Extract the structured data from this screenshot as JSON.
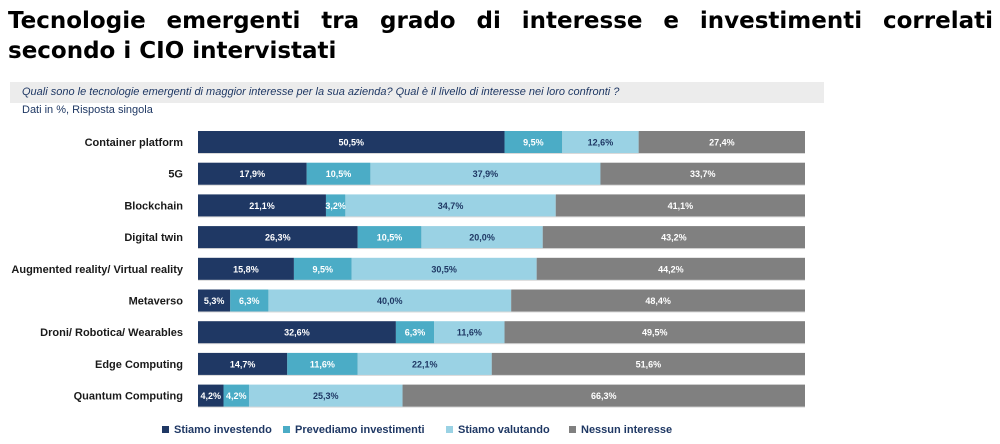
{
  "title": "Tecnologie emergenti tra grado di interesse e investimenti correlati secondo i CIO intervistati",
  "question": "Quali sono le tecnologie emergenti di maggior interesse per la sua azienda? Qual è il livello di interesse nei loro confronti ?",
  "note": "Dati in %, Risposta singola",
  "chart_data": {
    "type": "bar",
    "orientation": "horizontal",
    "stacked": true,
    "unit": "%",
    "categories": [
      "Container platform",
      "5G",
      "Blockchain",
      "Digital twin",
      "Augmented reality/ Virtual reality",
      "Metaverso",
      "Droni/ Robotica/ Wearables",
      "Edge Computing",
      "Quantum Computing"
    ],
    "series": [
      {
        "name": "Stiamo investendo",
        "color": "#1f3864",
        "values": [
          50.5,
          17.9,
          21.1,
          26.3,
          15.8,
          5.3,
          32.6,
          14.7,
          4.2
        ],
        "labels": [
          "50,5%",
          "17,9%",
          "21,1%",
          "26,3%",
          "15,8%",
          "5,3%",
          "32,6%",
          "14,7%",
          "4,2%"
        ]
      },
      {
        "name": "Prevediamo investimenti",
        "color": "#4bacc6",
        "values": [
          9.5,
          10.5,
          3.2,
          10.5,
          9.5,
          6.3,
          6.3,
          11.6,
          4.2
        ],
        "labels": [
          "9,5%",
          "10,5%",
          "3,2%",
          "10,5%",
          "9,5%",
          "6,3%",
          "6,3%",
          "11,6%",
          "4,2%"
        ]
      },
      {
        "name": "Stiamo valutando",
        "color": "#9ad2e4",
        "values": [
          12.6,
          37.9,
          34.7,
          20.0,
          30.5,
          40.0,
          11.6,
          22.1,
          25.3
        ],
        "labels": [
          "12,6%",
          "37,9%",
          "34,7%",
          "20,0%",
          "30,5%",
          "40,0%",
          "11,6%",
          "22,1%",
          "25,3%"
        ]
      },
      {
        "name": "Nessun interesse",
        "color": "#808080",
        "values": [
          27.4,
          33.7,
          41.1,
          43.2,
          44.2,
          48.4,
          49.5,
          51.6,
          66.3
        ],
        "labels": [
          "27,4%",
          "33,7%",
          "41,1%",
          "43,2%",
          "44,2%",
          "48,4%",
          "49,5%",
          "51,6%",
          "66,3%"
        ]
      }
    ]
  }
}
